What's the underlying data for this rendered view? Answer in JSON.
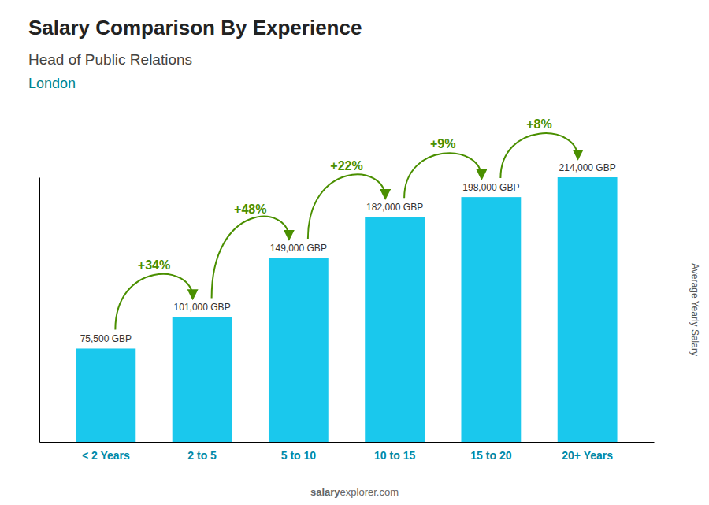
{
  "chart_data": {
    "type": "bar",
    "title": "Salary Comparison By Experience",
    "subtitle": "Head of Public Relations",
    "city": "London",
    "y_label": "Average Yearly Salary",
    "footer": [
      "salary",
      "explorer.com"
    ],
    "categories": [
      "< 2 Years",
      "2 to 5",
      "5 to 10",
      "10 to 15",
      "15 to 20",
      "20+ Years"
    ],
    "values": [
      75500,
      101000,
      149000,
      182000,
      198000,
      214000
    ],
    "value_labels": [
      "75,500 GBP",
      "101,000 GBP",
      "149,000 GBP",
      "182,000 GBP",
      "198,000 GBP",
      "214,000 GBP"
    ],
    "annotations": [
      "+34%",
      "+48%",
      "+22%",
      "+9%",
      "+8%"
    ],
    "color": "#1ac8ed",
    "ylim": [
      0,
      214000
    ],
    "data_labels": true,
    "tick_labels": "x"
  }
}
